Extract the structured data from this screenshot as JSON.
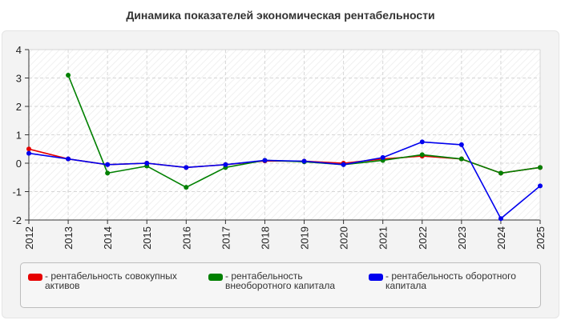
{
  "chart_data": {
    "type": "line",
    "title": "Динамика показателей экономическая рентабельности",
    "x": [
      "2012",
      "2013",
      "2014",
      "2015",
      "2016",
      "2017",
      "2018",
      "2019",
      "2020",
      "2021",
      "2022",
      "2023",
      "2024",
      "2025"
    ],
    "ylim": [
      -2,
      4
    ],
    "yticks": [
      4,
      3,
      2,
      1,
      0,
      -1,
      -2
    ],
    "grid": true,
    "legend_position": "bottom",
    "series": [
      {
        "name": "- рентабельность совокупных активов",
        "color": "#e60000",
        "values": [
          0.5,
          0.15,
          -0.05,
          0.0,
          -0.15,
          -0.05,
          0.08,
          0.07,
          0.0,
          0.15,
          0.25,
          0.15,
          -0.35,
          -0.15
        ]
      },
      {
        "name": "- рентабельность внеоборотного капитала",
        "color": "#008000",
        "values": [
          null,
          3.1,
          -0.35,
          -0.1,
          -0.85,
          -0.15,
          0.1,
          0.05,
          -0.05,
          0.1,
          0.3,
          0.15,
          -0.35,
          -0.15
        ]
      },
      {
        "name": "- рентабельность оборотного капитала",
        "color": "#0000ee",
        "values": [
          0.35,
          0.15,
          -0.05,
          0.0,
          -0.15,
          -0.05,
          0.1,
          0.07,
          -0.05,
          0.2,
          0.75,
          0.65,
          -1.95,
          -0.8
        ]
      }
    ]
  }
}
